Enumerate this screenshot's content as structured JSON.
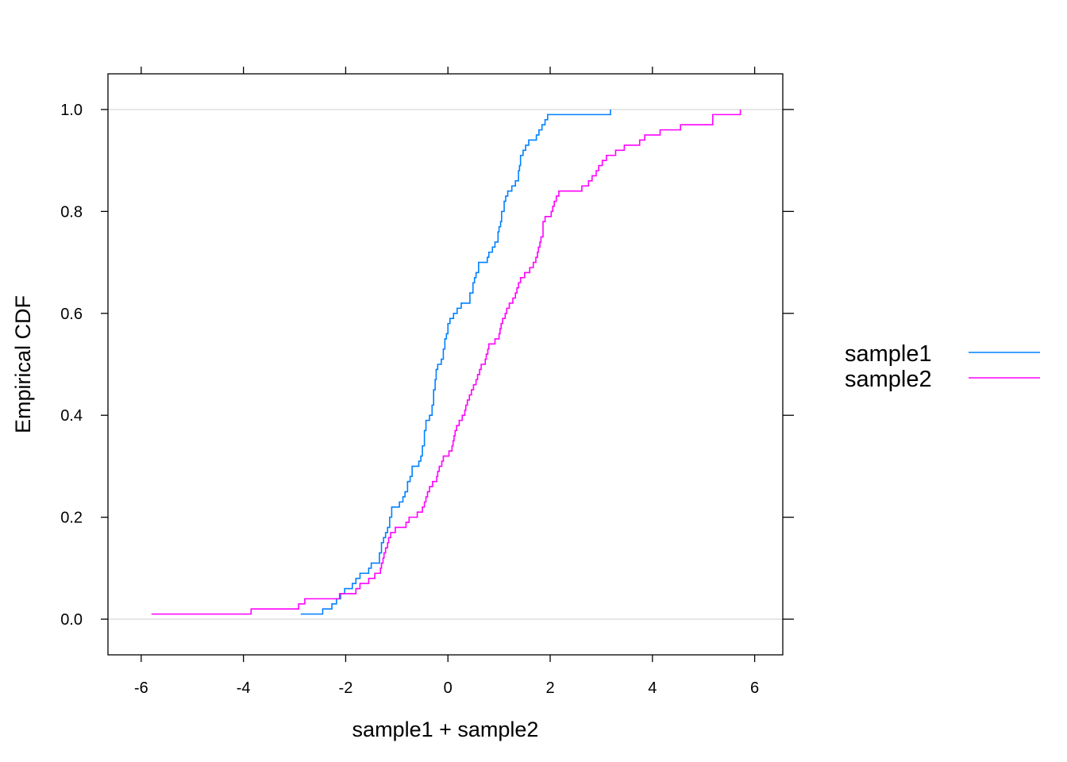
{
  "chart_data": {
    "type": "line",
    "subtype": "empirical-cdf-step",
    "xlabel": "sample1 + sample2",
    "ylabel": "Empirical CDF",
    "xlim": [
      -6.65,
      6.55
    ],
    "ylim": [
      -0.07,
      1.07
    ],
    "x_ticks": [
      -6,
      -4,
      -2,
      0,
      2,
      4,
      6
    ],
    "x_tick_labels": [
      "-6",
      "-4",
      "-2",
      "0",
      "2",
      "4",
      "6"
    ],
    "y_ticks": [
      0.0,
      0.2,
      0.4,
      0.6,
      0.8,
      1.0
    ],
    "y_tick_labels": [
      "0.0",
      "0.2",
      "0.4",
      "0.6",
      "0.8",
      "1.0"
    ],
    "reference_lines_y": [
      0,
      1
    ],
    "grid": false,
    "legend_position": "right",
    "series": [
      {
        "name": "sample1",
        "color": "#0080ff",
        "points": [
          [
            -2.88,
            0.01
          ],
          [
            -2.45,
            0.02
          ],
          [
            -2.27,
            0.03
          ],
          [
            -2.18,
            0.04
          ],
          [
            -2.1,
            0.05
          ],
          [
            -2.02,
            0.06
          ],
          [
            -1.87,
            0.07
          ],
          [
            -1.8,
            0.08
          ],
          [
            -1.72,
            0.09
          ],
          [
            -1.55,
            0.1
          ],
          [
            -1.5,
            0.11
          ],
          [
            -1.34,
            0.13
          ],
          [
            -1.3,
            0.15
          ],
          [
            -1.26,
            0.16
          ],
          [
            -1.22,
            0.17
          ],
          [
            -1.18,
            0.18
          ],
          [
            -1.14,
            0.2
          ],
          [
            -1.1,
            0.22
          ],
          [
            -0.95,
            0.23
          ],
          [
            -0.88,
            0.24
          ],
          [
            -0.84,
            0.25
          ],
          [
            -0.79,
            0.27
          ],
          [
            -0.74,
            0.28
          ],
          [
            -0.7,
            0.3
          ],
          [
            -0.57,
            0.31
          ],
          [
            -0.53,
            0.32
          ],
          [
            -0.5,
            0.34
          ],
          [
            -0.46,
            0.37
          ],
          [
            -0.43,
            0.39
          ],
          [
            -0.36,
            0.4
          ],
          [
            -0.31,
            0.42
          ],
          [
            -0.28,
            0.45
          ],
          [
            -0.25,
            0.47
          ],
          [
            -0.23,
            0.49
          ],
          [
            -0.2,
            0.5
          ],
          [
            -0.13,
            0.51
          ],
          [
            -0.09,
            0.53
          ],
          [
            -0.06,
            0.55
          ],
          [
            -0.03,
            0.56
          ],
          [
            0.0,
            0.58
          ],
          [
            0.04,
            0.59
          ],
          [
            0.11,
            0.6
          ],
          [
            0.18,
            0.61
          ],
          [
            0.26,
            0.62
          ],
          [
            0.43,
            0.64
          ],
          [
            0.49,
            0.66
          ],
          [
            0.52,
            0.67
          ],
          [
            0.55,
            0.68
          ],
          [
            0.6,
            0.7
          ],
          [
            0.77,
            0.71
          ],
          [
            0.8,
            0.72
          ],
          [
            0.87,
            0.73
          ],
          [
            0.92,
            0.74
          ],
          [
            0.98,
            0.76
          ],
          [
            1.0,
            0.77
          ],
          [
            1.03,
            0.78
          ],
          [
            1.05,
            0.8
          ],
          [
            1.1,
            0.82
          ],
          [
            1.13,
            0.83
          ],
          [
            1.17,
            0.84
          ],
          [
            1.25,
            0.85
          ],
          [
            1.32,
            0.86
          ],
          [
            1.38,
            0.88
          ],
          [
            1.4,
            0.89
          ],
          [
            1.42,
            0.91
          ],
          [
            1.47,
            0.92
          ],
          [
            1.52,
            0.93
          ],
          [
            1.58,
            0.94
          ],
          [
            1.73,
            0.95
          ],
          [
            1.78,
            0.96
          ],
          [
            1.84,
            0.97
          ],
          [
            1.9,
            0.98
          ],
          [
            1.95,
            0.99
          ],
          [
            3.18,
            1.0
          ]
        ]
      },
      {
        "name": "sample2",
        "color": "#ff00ff",
        "points": [
          [
            -5.8,
            0.01
          ],
          [
            -3.85,
            0.02
          ],
          [
            -2.92,
            0.03
          ],
          [
            -2.8,
            0.04
          ],
          [
            -2.12,
            0.05
          ],
          [
            -1.8,
            0.06
          ],
          [
            -1.72,
            0.07
          ],
          [
            -1.55,
            0.08
          ],
          [
            -1.43,
            0.09
          ],
          [
            -1.32,
            0.1
          ],
          [
            -1.3,
            0.11
          ],
          [
            -1.27,
            0.12
          ],
          [
            -1.25,
            0.13
          ],
          [
            -1.22,
            0.14
          ],
          [
            -1.18,
            0.15
          ],
          [
            -1.16,
            0.16
          ],
          [
            -1.12,
            0.17
          ],
          [
            -1.03,
            0.18
          ],
          [
            -0.82,
            0.19
          ],
          [
            -0.76,
            0.2
          ],
          [
            -0.6,
            0.21
          ],
          [
            -0.5,
            0.22
          ],
          [
            -0.46,
            0.23
          ],
          [
            -0.43,
            0.24
          ],
          [
            -0.4,
            0.25
          ],
          [
            -0.36,
            0.26
          ],
          [
            -0.3,
            0.27
          ],
          [
            -0.22,
            0.28
          ],
          [
            -0.2,
            0.29
          ],
          [
            -0.17,
            0.3
          ],
          [
            -0.12,
            0.31
          ],
          [
            -0.09,
            0.32
          ],
          [
            0.02,
            0.33
          ],
          [
            0.08,
            0.34
          ],
          [
            0.1,
            0.35
          ],
          [
            0.12,
            0.36
          ],
          [
            0.14,
            0.37
          ],
          [
            0.17,
            0.38
          ],
          [
            0.22,
            0.39
          ],
          [
            0.28,
            0.4
          ],
          [
            0.33,
            0.41
          ],
          [
            0.35,
            0.42
          ],
          [
            0.38,
            0.43
          ],
          [
            0.42,
            0.44
          ],
          [
            0.46,
            0.45
          ],
          [
            0.5,
            0.46
          ],
          [
            0.55,
            0.47
          ],
          [
            0.58,
            0.48
          ],
          [
            0.62,
            0.49
          ],
          [
            0.65,
            0.5
          ],
          [
            0.73,
            0.51
          ],
          [
            0.75,
            0.52
          ],
          [
            0.78,
            0.53
          ],
          [
            0.8,
            0.54
          ],
          [
            0.92,
            0.55
          ],
          [
            1.0,
            0.56
          ],
          [
            1.02,
            0.57
          ],
          [
            1.04,
            0.58
          ],
          [
            1.07,
            0.59
          ],
          [
            1.12,
            0.6
          ],
          [
            1.15,
            0.61
          ],
          [
            1.2,
            0.62
          ],
          [
            1.27,
            0.63
          ],
          [
            1.32,
            0.64
          ],
          [
            1.35,
            0.65
          ],
          [
            1.38,
            0.66
          ],
          [
            1.42,
            0.67
          ],
          [
            1.5,
            0.68
          ],
          [
            1.6,
            0.69
          ],
          [
            1.67,
            0.7
          ],
          [
            1.72,
            0.71
          ],
          [
            1.75,
            0.72
          ],
          [
            1.77,
            0.73
          ],
          [
            1.8,
            0.74
          ],
          [
            1.82,
            0.75
          ],
          [
            1.86,
            0.78
          ],
          [
            1.9,
            0.79
          ],
          [
            2.02,
            0.8
          ],
          [
            2.05,
            0.81
          ],
          [
            2.08,
            0.82
          ],
          [
            2.12,
            0.83
          ],
          [
            2.17,
            0.84
          ],
          [
            2.62,
            0.85
          ],
          [
            2.75,
            0.86
          ],
          [
            2.82,
            0.87
          ],
          [
            2.9,
            0.88
          ],
          [
            2.95,
            0.89
          ],
          [
            3.02,
            0.9
          ],
          [
            3.1,
            0.91
          ],
          [
            3.28,
            0.92
          ],
          [
            3.45,
            0.93
          ],
          [
            3.75,
            0.94
          ],
          [
            3.85,
            0.95
          ],
          [
            4.15,
            0.96
          ],
          [
            4.55,
            0.97
          ],
          [
            5.18,
            0.99
          ],
          [
            5.72,
            1.0
          ]
        ]
      }
    ]
  }
}
